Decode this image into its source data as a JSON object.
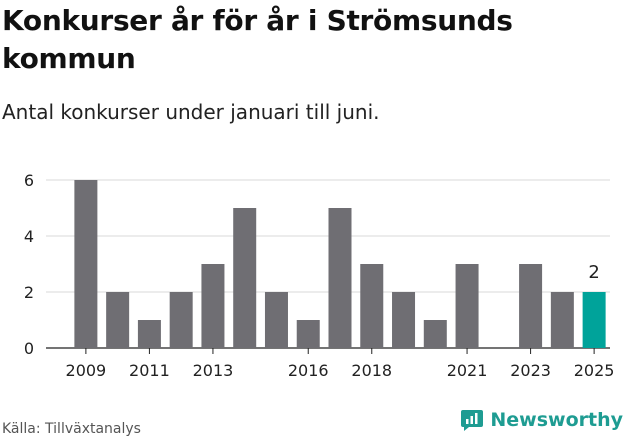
{
  "header": {
    "title": "Konkurser år för år i Strömsunds kommun",
    "subtitle": "Antal konkurser under januari till juni."
  },
  "footer": {
    "source": "Källa: Tillväxtanalys",
    "brand": "Newsworthy"
  },
  "colors": {
    "bar": "#6f6e73",
    "highlight": "#00a39a",
    "grid": "#d9d9d9",
    "brand": "#1e9c92"
  },
  "chart_data": {
    "type": "bar",
    "categories": [
      "2009",
      "2010",
      "2011",
      "2012",
      "2013",
      "2014",
      "2015",
      "2016",
      "2017",
      "2018",
      "2019",
      "2020",
      "2021",
      "2022",
      "2023",
      "2024",
      "2025"
    ],
    "values": [
      6,
      2,
      1,
      2,
      3,
      5,
      2,
      1,
      5,
      3,
      2,
      1,
      3,
      0,
      3,
      2,
      2
    ],
    "x_tick_labels": [
      "2009",
      "2011",
      "2013",
      "2016",
      "2018",
      "2021",
      "2023",
      "2025"
    ],
    "y_ticks": [
      0,
      2,
      4,
      6
    ],
    "ylim": [
      0,
      6
    ],
    "highlight_category": "2025",
    "highlight_label": "2",
    "grid": true
  }
}
